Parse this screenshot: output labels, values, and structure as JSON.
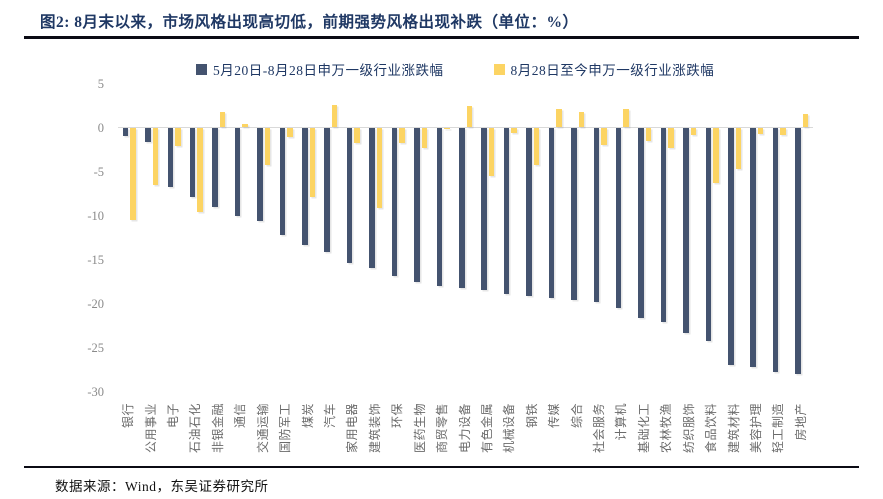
{
  "figure": {
    "title": "图2:  8月末以来，市场风格出现高切低，前期强势风格出现补跌（单位：%）",
    "source": "数据来源：Wind，东吴证券研究所"
  },
  "colors": {
    "title_text": "#1F3864",
    "series1": "#44536F",
    "series2": "#FCD463",
    "zero_line": "#D9D9D9",
    "axis_text": "#8a8a8a",
    "rule": "#0b0b14"
  },
  "chart_data": {
    "type": "bar",
    "title": "8月末以来，市场风格出现高切低，前期强势风格出现补跌",
    "unit": "%",
    "categories": [
      "银行",
      "公用事业",
      "电子",
      "石油石化",
      "非银金融",
      "通信",
      "交通运输",
      "国防军工",
      "煤炭",
      "汽车",
      "家用电器",
      "建筑装饰",
      "环保",
      "医药生物",
      "商贸零售",
      "电力设备",
      "有色金属",
      "机械设备",
      "钢铁",
      "传媒",
      "综合",
      "社会服务",
      "计算机",
      "基础化工",
      "农林牧渔",
      "纺织服饰",
      "食品饮料",
      "建筑材料",
      "美容护理",
      "轻工制造",
      "房地产"
    ],
    "series": [
      {
        "name": "5月20日-8月28日申万一级行业涨跌幅",
        "color": "#44536F",
        "values": [
          -1.0,
          -1.7,
          -6.8,
          -7.9,
          -9.0,
          -10.1,
          -10.6,
          -12.2,
          -13.3,
          -14.2,
          -15.4,
          -16.0,
          -16.9,
          -17.6,
          -18.0,
          -18.2,
          -18.5,
          -18.9,
          -19.2,
          -19.4,
          -19.6,
          -19.8,
          -20.5,
          -21.7,
          -22.1,
          -23.3,
          -24.3,
          -27.0,
          -27.2,
          -27.8,
          -28.0
        ]
      },
      {
        "name": "8月28日至今申万一级行业涨跌幅",
        "color": "#FCD463",
        "values": [
          -10.5,
          -6.5,
          -2.1,
          -9.6,
          1.8,
          0.4,
          -4.3,
          -1.1,
          -7.9,
          2.6,
          -1.8,
          -9.2,
          -1.8,
          -2.3,
          -0.2,
          2.4,
          -5.5,
          -0.6,
          -4.3,
          2.1,
          1.8,
          -2.0,
          2.1,
          -1.5,
          -2.3,
          -0.9,
          -6.3,
          -4.7,
          -0.7,
          -0.9,
          1.5
        ]
      }
    ],
    "ylim": [
      -30,
      5
    ],
    "yticks": [
      5,
      0,
      -5,
      -10,
      -15,
      -20,
      -25,
      -30
    ],
    "grid": false,
    "legend_position": "top"
  }
}
